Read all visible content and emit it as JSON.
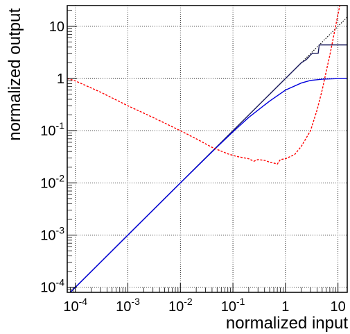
{
  "chart_data": {
    "type": "line",
    "xlabel": "normalized input",
    "ylabel": "normalized output",
    "xscale": "log",
    "yscale": "log",
    "xlim": [
      7e-05,
      15
    ],
    "ylim": [
      8e-05,
      25
    ],
    "grid": true,
    "x_ticks": [
      {
        "value": 0.0001,
        "base": "10",
        "exp": "-4"
      },
      {
        "value": 0.001,
        "base": "10",
        "exp": "-3"
      },
      {
        "value": 0.01,
        "base": "10",
        "exp": "-2"
      },
      {
        "value": 0.1,
        "base": "10",
        "exp": "-1"
      },
      {
        "value": 1,
        "base": "1",
        "exp": ""
      },
      {
        "value": 10,
        "base": "10",
        "exp": ""
      }
    ],
    "y_ticks": [
      {
        "value": 0.0001,
        "base": "10",
        "exp": "-4"
      },
      {
        "value": 0.001,
        "base": "10",
        "exp": "-3"
      },
      {
        "value": 0.01,
        "base": "10",
        "exp": "-2"
      },
      {
        "value": 0.1,
        "base": "10",
        "exp": "-1"
      },
      {
        "value": 1,
        "base": "1",
        "exp": ""
      },
      {
        "value": 10,
        "base": "10",
        "exp": ""
      }
    ],
    "series": [
      {
        "color": "#000000",
        "style": "dotted",
        "x": [
          7e-05,
          0.0001,
          0.001,
          0.01,
          0.1,
          1,
          5,
          15
        ],
        "y": [
          7e-05,
          0.0001,
          0.001,
          0.01,
          0.1,
          1,
          5,
          15
        ]
      },
      {
        "color": "#1a1a5c",
        "style": "solid",
        "x": [
          7e-05,
          0.0001,
          0.001,
          0.01,
          0.1,
          0.5,
          1,
          2,
          2.5,
          2.8,
          3.0,
          3.3,
          3.6,
          4.2,
          4.4,
          15
        ],
        "y": [
          7e-05,
          0.0001,
          0.001,
          0.01,
          0.1,
          0.5,
          1,
          2,
          2.3,
          2.6,
          2.85,
          3.05,
          3.05,
          3.05,
          4.4,
          4.4
        ]
      },
      {
        "color": "#0000dd",
        "style": "solid",
        "x": [
          7e-05,
          0.0001,
          0.001,
          0.01,
          0.05,
          0.1,
          0.2,
          0.5,
          1,
          2,
          3,
          5,
          10,
          15
        ],
        "y": [
          7e-05,
          0.0001,
          0.001,
          0.01,
          0.049,
          0.095,
          0.18,
          0.37,
          0.6,
          0.82,
          0.92,
          0.97,
          0.995,
          1.0
        ]
      },
      {
        "color": "#ff0000",
        "style": "dashed",
        "x": [
          7e-05,
          0.0001,
          0.0003,
          0.001,
          0.003,
          0.01,
          0.02,
          0.04,
          0.08,
          0.12,
          0.2,
          0.25,
          0.3,
          0.4,
          0.5,
          0.6,
          0.7,
          0.8,
          1.0,
          1.5,
          2,
          3,
          4,
          5,
          6,
          7,
          8,
          9,
          10,
          11
        ],
        "y": [
          1.0,
          0.9,
          0.55,
          0.3,
          0.18,
          0.1,
          0.07,
          0.048,
          0.036,
          0.032,
          0.029,
          0.026,
          0.028,
          0.027,
          0.025,
          0.024,
          0.023,
          0.028,
          0.029,
          0.035,
          0.05,
          0.1,
          0.25,
          0.6,
          1.4,
          2.8,
          5.5,
          10,
          17,
          27
        ]
      }
    ]
  }
}
